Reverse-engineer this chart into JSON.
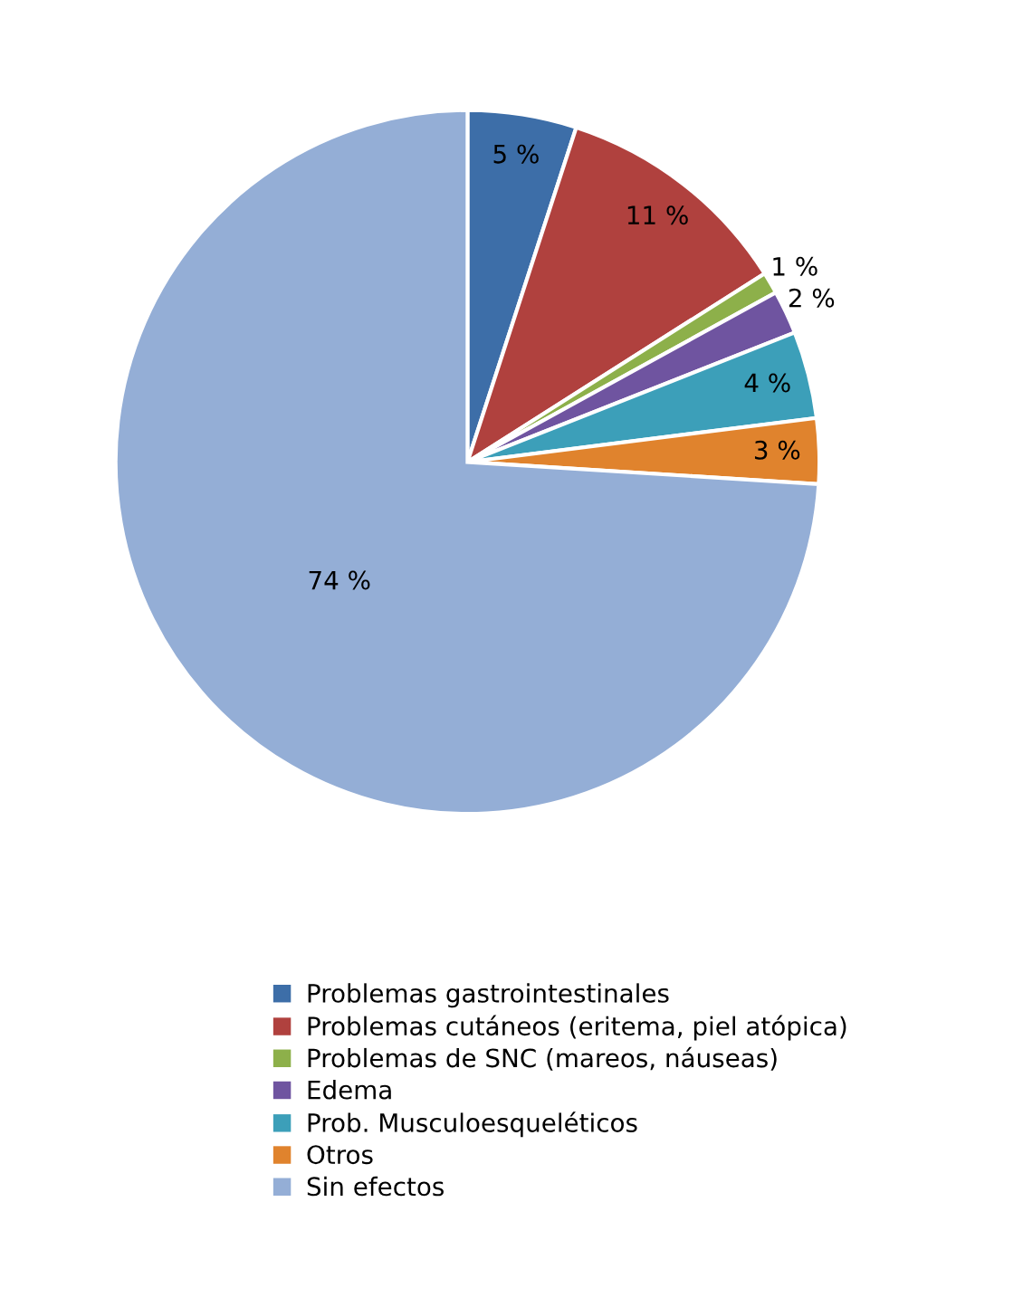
{
  "chart_data": {
    "type": "pie",
    "categories": [
      "Problemas gastrointestinales",
      "Problemas cutáneos (eritema, piel atópica)",
      "Problemas de SNC (mareos, náuseas)",
      "Edema",
      "Prob. Musculoesqueléticos",
      "Otros",
      "Sin efectos"
    ],
    "values": [
      5,
      11,
      1,
      2,
      4,
      3,
      74
    ],
    "colors": [
      "#3d6ea8",
      "#b0413e",
      "#8db04a",
      "#6f54a0",
      "#3c9fb9",
      "#e0832d",
      "#94aed6"
    ],
    "value_labels": [
      "5 %",
      "11 %",
      "1 %",
      "2 %",
      "4 %",
      "3 %",
      "74 %"
    ],
    "legend": "bottom"
  }
}
